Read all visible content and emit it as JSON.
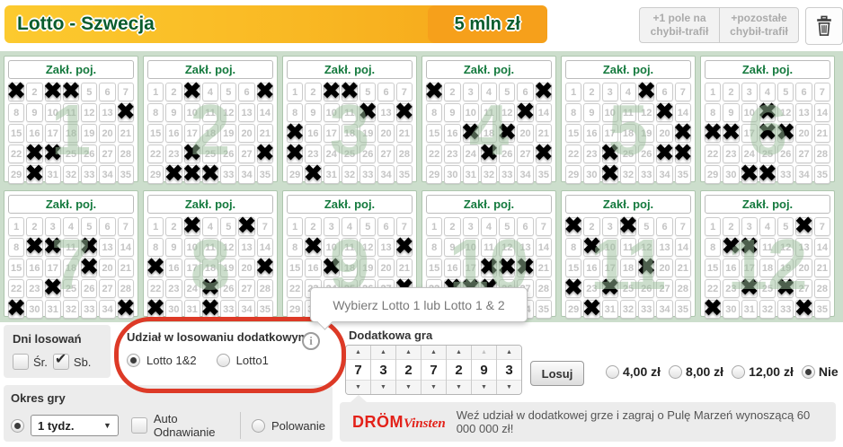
{
  "header": {
    "title": "Lotto - Szwecja",
    "jackpot": "5 mln zł",
    "quick_pick_buttons": [
      {
        "label": "+1 pole na chybił-trafił"
      },
      {
        "label": "+pozostałe chybił-trafił"
      }
    ]
  },
  "ticket": {
    "numbers_per_panel": 35,
    "columns": 7
  },
  "panels": [
    {
      "number": "1",
      "header": "Zakł. poj.",
      "marked": [
        1,
        3,
        4,
        14,
        23,
        24,
        30
      ]
    },
    {
      "number": "2",
      "header": "Zakł. poj.",
      "marked": [
        3,
        7,
        24,
        28,
        30,
        31,
        32
      ]
    },
    {
      "number": "3",
      "header": "Zakł. poj.",
      "marked": [
        3,
        4,
        12,
        14,
        15,
        22,
        30
      ]
    },
    {
      "number": "4",
      "header": "Zakł. poj.",
      "marked": [
        1,
        7,
        13,
        17,
        19,
        25,
        28
      ]
    },
    {
      "number": "5",
      "header": "Zakł. poj.",
      "marked": [
        5,
        13,
        21,
        24,
        27,
        28,
        31
      ]
    },
    {
      "number": "6",
      "header": "Zakł. poj.",
      "marked": [
        11,
        15,
        16,
        18,
        19,
        31,
        32
      ]
    },
    {
      "number": "7",
      "header": "Zakł. poj.",
      "marked": [
        9,
        10,
        12,
        19,
        24,
        29,
        35
      ]
    },
    {
      "number": "8",
      "header": "Zakł. poj.",
      "marked": [
        3,
        6,
        15,
        21,
        25,
        29,
        32
      ]
    },
    {
      "number": "9",
      "header": "Zakł. poj.",
      "marked": [
        9,
        14,
        17,
        28
      ]
    },
    {
      "number": "10",
      "header": "Zakł. poj.",
      "marked": [
        18,
        19,
        20,
        23,
        24,
        25
      ]
    },
    {
      "number": "11",
      "header": "Zakł. poj.",
      "marked": [
        1,
        4,
        9,
        19,
        22,
        24,
        30
      ]
    },
    {
      "number": "12",
      "header": "Zakł. poj.",
      "marked": [
        6,
        9,
        10,
        24,
        26,
        29,
        34
      ]
    }
  ],
  "tooltip": {
    "text": "Wybierz Lotto 1 lub Lotto 1 & 2"
  },
  "draw_days": {
    "title": "Dni losowań",
    "options": [
      {
        "label": "Śr.",
        "checked": false
      },
      {
        "label": "Sb.",
        "checked": true
      }
    ]
  },
  "extra_draw": {
    "title": "Udział w losowaniu dodatkowym",
    "options": [
      {
        "label": "Lotto 1&2",
        "selected": true
      },
      {
        "label": "Lotto1",
        "selected": false
      }
    ]
  },
  "game_period": {
    "title": "Okres gry",
    "selected_period": "1 tydz.",
    "period_selected": true,
    "auto_renew_label": "Auto Odnawianie",
    "auto_renew_checked": false,
    "hunt_label": "Polowanie",
    "hunt_selected": false
  },
  "extra_game": {
    "title": "Dodatkowa gra",
    "digits": [
      7,
      3,
      2,
      7,
      2,
      9,
      3
    ],
    "max_digit": 9,
    "draw_button_label": "Losuj",
    "price_options": [
      {
        "label": "4,00 zł",
        "selected": false
      },
      {
        "label": "8,00 zł",
        "selected": false
      },
      {
        "label": "12,00 zł",
        "selected": false
      },
      {
        "label": "Nie",
        "selected": true
      }
    ],
    "brand_bold": "DRÖM",
    "brand_script": "Vinsten",
    "promo": "Weź udział w dodatkowej grze i zagraj o Pulę Marzeń wynoszącą 60 000 000 zł!"
  },
  "icons": {
    "x_mark": "✖",
    "check": "✔",
    "up_arrow": "▲",
    "down_arrow": "▼",
    "dropdown_arrow": "▼",
    "info": "i"
  },
  "colors": {
    "header_gradient_start": "#fcca2f",
    "header_gradient_end": "#f5a318",
    "brand_green": "#0a5c2c",
    "panels_bg": "#ccdecc",
    "highlight_red": "#dd3a27",
    "drom_red": "#e32119"
  }
}
